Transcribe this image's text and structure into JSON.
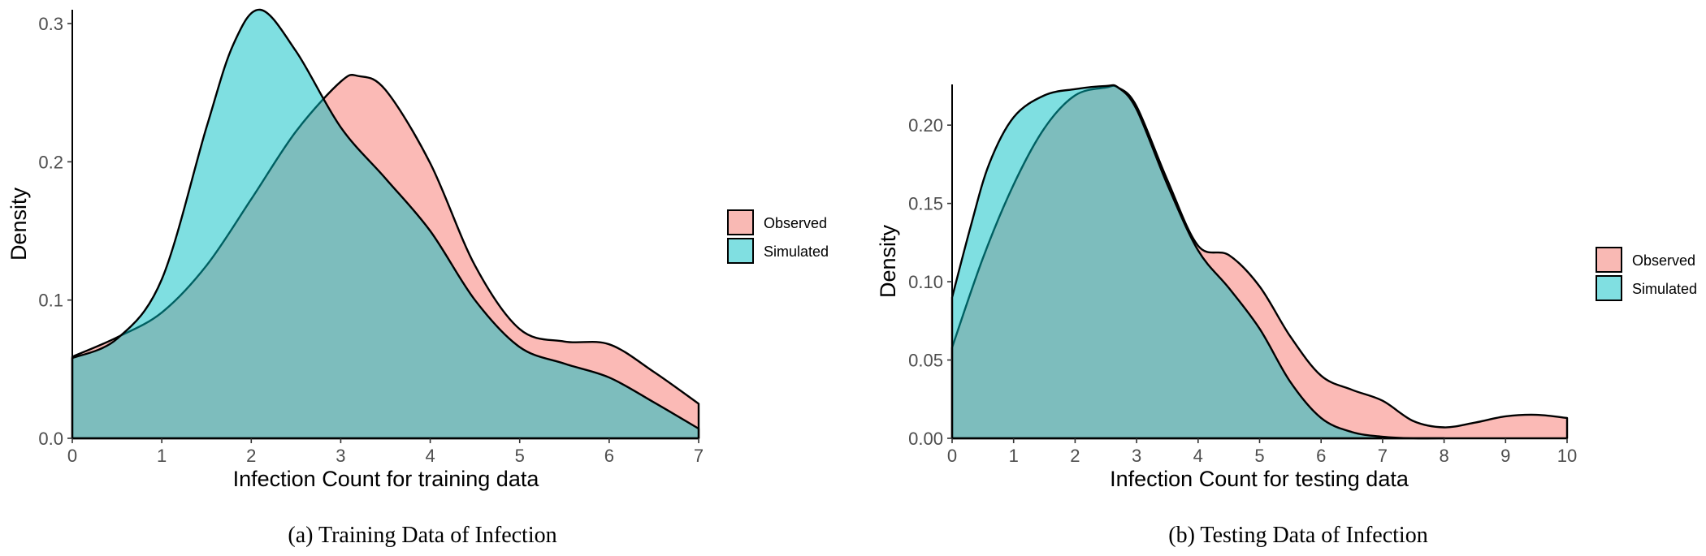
{
  "figures": [
    {
      "caption": "(a)  Training Data of Infection",
      "legend": [
        "Observed",
        "Simulated"
      ]
    },
    {
      "caption": "(b)  Testing Data of Infection",
      "legend": [
        "Observed",
        "Simulated"
      ]
    }
  ],
  "colors": {
    "observed": "#F8766D",
    "simulated": "#00BFC4",
    "overlap": "#7FBBBB",
    "observed_fill": "#F9B9B4",
    "simulated_fill": "#80DFE1"
  },
  "chart_data": [
    {
      "type": "area",
      "subtype": "density",
      "title": "",
      "xlabel": "Infection Count for training data",
      "ylabel": "Density",
      "xlim": [
        0,
        7
      ],
      "ylim": [
        0,
        0.31
      ],
      "xticks": [
        "0",
        "1",
        "2",
        "3",
        "4",
        "5",
        "6",
        "7"
      ],
      "yticks": [
        "0.0",
        "0.1",
        "0.2",
        "0.3"
      ],
      "ytick_values": [
        0,
        0.1,
        0.2,
        0.3
      ],
      "grid": false,
      "legend_position": "right",
      "series": [
        {
          "name": "Observed",
          "x": [
            0,
            0.5,
            1,
            1.5,
            2,
            2.5,
            3,
            3.2,
            3.5,
            4,
            4.5,
            5,
            5.5,
            6,
            6.5,
            7
          ],
          "y": [
            0.059,
            0.073,
            0.091,
            0.125,
            0.173,
            0.222,
            0.258,
            0.262,
            0.252,
            0.199,
            0.125,
            0.079,
            0.07,
            0.068,
            0.048,
            0.025
          ]
        },
        {
          "name": "Simulated",
          "x": [
            0,
            0.5,
            1,
            1.5,
            1.8,
            2.1,
            2.5,
            3,
            3.5,
            4,
            4.5,
            5,
            5.5,
            6,
            6.5,
            7
          ],
          "y": [
            0.058,
            0.072,
            0.115,
            0.225,
            0.285,
            0.31,
            0.28,
            0.225,
            0.188,
            0.15,
            0.1,
            0.066,
            0.054,
            0.044,
            0.026,
            0.007
          ]
        }
      ]
    },
    {
      "type": "area",
      "subtype": "density",
      "title": "",
      "xlabel": "Infection Count for testing data",
      "ylabel": "Density",
      "xlim": [
        0,
        10
      ],
      "ylim": [
        0,
        0.226
      ],
      "xticks": [
        "0",
        "1",
        "2",
        "3",
        "4",
        "5",
        "6",
        "7",
        "8",
        "9",
        "10"
      ],
      "yticks": [
        "0.00",
        "0.05",
        "0.10",
        "0.15",
        "0.20"
      ],
      "ytick_values": [
        0,
        0.05,
        0.1,
        0.15,
        0.2
      ],
      "grid": false,
      "legend_position": "right",
      "series": [
        {
          "name": "Observed",
          "x": [
            0,
            0.5,
            1,
            1.5,
            2,
            2.5,
            2.7,
            3,
            3.5,
            4,
            4.5,
            5,
            5.5,
            6,
            6.5,
            7,
            7.5,
            8,
            8.5,
            9,
            9.5,
            10
          ],
          "y": [
            0.058,
            0.115,
            0.162,
            0.198,
            0.219,
            0.224,
            0.224,
            0.212,
            0.165,
            0.123,
            0.117,
            0.097,
            0.065,
            0.04,
            0.031,
            0.024,
            0.011,
            0.007,
            0.01,
            0.014,
            0.015,
            0.013
          ]
        },
        {
          "name": "Simulated",
          "x": [
            0,
            0.3,
            0.6,
            1,
            1.5,
            2,
            2.5,
            2.7,
            3,
            3.5,
            4,
            4.5,
            5,
            5.5,
            6,
            6.5,
            7,
            7.5,
            8
          ],
          "y": [
            0.09,
            0.135,
            0.175,
            0.205,
            0.219,
            0.223,
            0.225,
            0.224,
            0.21,
            0.162,
            0.12,
            0.096,
            0.07,
            0.036,
            0.013,
            0.004,
            0.001,
            0.0,
            0.0
          ]
        }
      ]
    }
  ]
}
